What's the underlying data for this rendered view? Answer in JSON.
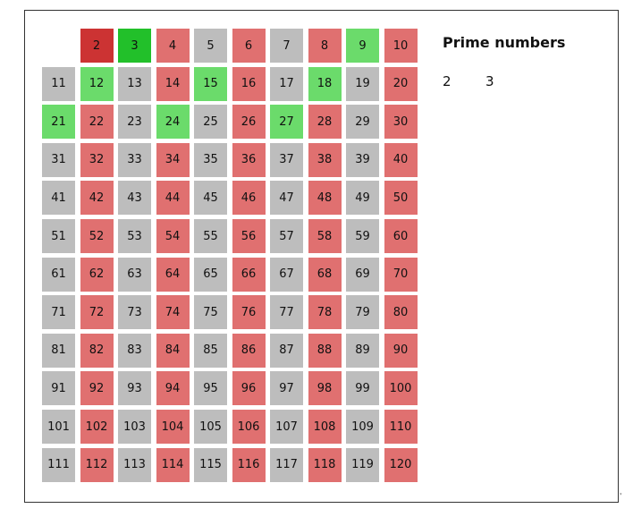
{
  "panel": {
    "title": "Prime numbers",
    "found_primes": [
      "2",
      "3"
    ]
  },
  "sieve": {
    "start": 2,
    "end": 120,
    "columns": 10,
    "first_cell_offset": 1,
    "cells": [
      {
        "n": "2",
        "state": "current-prime"
      },
      {
        "n": "3",
        "state": "prime-found"
      },
      {
        "n": "4",
        "state": "multiple"
      },
      {
        "n": "5",
        "state": "unmarked"
      },
      {
        "n": "6",
        "state": "multiple"
      },
      {
        "n": "7",
        "state": "unmarked"
      },
      {
        "n": "8",
        "state": "multiple"
      },
      {
        "n": "9",
        "state": "marked-green"
      },
      {
        "n": "10",
        "state": "multiple"
      },
      {
        "n": "11",
        "state": "unmarked"
      },
      {
        "n": "12",
        "state": "marked-green"
      },
      {
        "n": "13",
        "state": "unmarked"
      },
      {
        "n": "14",
        "state": "multiple"
      },
      {
        "n": "15",
        "state": "marked-green"
      },
      {
        "n": "16",
        "state": "multiple"
      },
      {
        "n": "17",
        "state": "unmarked"
      },
      {
        "n": "18",
        "state": "marked-green"
      },
      {
        "n": "19",
        "state": "unmarked"
      },
      {
        "n": "20",
        "state": "multiple"
      },
      {
        "n": "21",
        "state": "marked-green"
      },
      {
        "n": "22",
        "state": "multiple"
      },
      {
        "n": "23",
        "state": "unmarked"
      },
      {
        "n": "24",
        "state": "marked-green"
      },
      {
        "n": "25",
        "state": "unmarked"
      },
      {
        "n": "26",
        "state": "multiple"
      },
      {
        "n": "27",
        "state": "marked-green"
      },
      {
        "n": "28",
        "state": "multiple"
      },
      {
        "n": "29",
        "state": "unmarked"
      },
      {
        "n": "30",
        "state": "multiple"
      },
      {
        "n": "31",
        "state": "unmarked"
      },
      {
        "n": "32",
        "state": "multiple"
      },
      {
        "n": "33",
        "state": "unmarked"
      },
      {
        "n": "34",
        "state": "multiple"
      },
      {
        "n": "35",
        "state": "unmarked"
      },
      {
        "n": "36",
        "state": "multiple"
      },
      {
        "n": "37",
        "state": "unmarked"
      },
      {
        "n": "38",
        "state": "multiple"
      },
      {
        "n": "39",
        "state": "unmarked"
      },
      {
        "n": "40",
        "state": "multiple"
      },
      {
        "n": "41",
        "state": "unmarked"
      },
      {
        "n": "42",
        "state": "multiple"
      },
      {
        "n": "43",
        "state": "unmarked"
      },
      {
        "n": "44",
        "state": "multiple"
      },
      {
        "n": "45",
        "state": "unmarked"
      },
      {
        "n": "46",
        "state": "multiple"
      },
      {
        "n": "47",
        "state": "unmarked"
      },
      {
        "n": "48",
        "state": "multiple"
      },
      {
        "n": "49",
        "state": "unmarked"
      },
      {
        "n": "50",
        "state": "multiple"
      },
      {
        "n": "51",
        "state": "unmarked"
      },
      {
        "n": "52",
        "state": "multiple"
      },
      {
        "n": "53",
        "state": "unmarked"
      },
      {
        "n": "54",
        "state": "multiple"
      },
      {
        "n": "55",
        "state": "unmarked"
      },
      {
        "n": "56",
        "state": "multiple"
      },
      {
        "n": "57",
        "state": "unmarked"
      },
      {
        "n": "58",
        "state": "multiple"
      },
      {
        "n": "59",
        "state": "unmarked"
      },
      {
        "n": "60",
        "state": "multiple"
      },
      {
        "n": "61",
        "state": "unmarked"
      },
      {
        "n": "62",
        "state": "multiple"
      },
      {
        "n": "63",
        "state": "unmarked"
      },
      {
        "n": "64",
        "state": "multiple"
      },
      {
        "n": "65",
        "state": "unmarked"
      },
      {
        "n": "66",
        "state": "multiple"
      },
      {
        "n": "67",
        "state": "unmarked"
      },
      {
        "n": "68",
        "state": "multiple"
      },
      {
        "n": "69",
        "state": "unmarked"
      },
      {
        "n": "70",
        "state": "multiple"
      },
      {
        "n": "71",
        "state": "unmarked"
      },
      {
        "n": "72",
        "state": "multiple"
      },
      {
        "n": "73",
        "state": "unmarked"
      },
      {
        "n": "74",
        "state": "multiple"
      },
      {
        "n": "75",
        "state": "unmarked"
      },
      {
        "n": "76",
        "state": "multiple"
      },
      {
        "n": "77",
        "state": "unmarked"
      },
      {
        "n": "78",
        "state": "multiple"
      },
      {
        "n": "79",
        "state": "unmarked"
      },
      {
        "n": "80",
        "state": "multiple"
      },
      {
        "n": "81",
        "state": "unmarked"
      },
      {
        "n": "82",
        "state": "multiple"
      },
      {
        "n": "83",
        "state": "unmarked"
      },
      {
        "n": "84",
        "state": "multiple"
      },
      {
        "n": "85",
        "state": "unmarked"
      },
      {
        "n": "86",
        "state": "multiple"
      },
      {
        "n": "87",
        "state": "unmarked"
      },
      {
        "n": "88",
        "state": "multiple"
      },
      {
        "n": "89",
        "state": "unmarked"
      },
      {
        "n": "90",
        "state": "multiple"
      },
      {
        "n": "91",
        "state": "unmarked"
      },
      {
        "n": "92",
        "state": "multiple"
      },
      {
        "n": "93",
        "state": "unmarked"
      },
      {
        "n": "94",
        "state": "multiple"
      },
      {
        "n": "95",
        "state": "unmarked"
      },
      {
        "n": "96",
        "state": "multiple"
      },
      {
        "n": "97",
        "state": "unmarked"
      },
      {
        "n": "98",
        "state": "multiple"
      },
      {
        "n": "99",
        "state": "unmarked"
      },
      {
        "n": "100",
        "state": "multiple"
      },
      {
        "n": "101",
        "state": "unmarked"
      },
      {
        "n": "102",
        "state": "multiple"
      },
      {
        "n": "103",
        "state": "unmarked"
      },
      {
        "n": "104",
        "state": "multiple"
      },
      {
        "n": "105",
        "state": "unmarked"
      },
      {
        "n": "106",
        "state": "multiple"
      },
      {
        "n": "107",
        "state": "unmarked"
      },
      {
        "n": "108",
        "state": "multiple"
      },
      {
        "n": "109",
        "state": "unmarked"
      },
      {
        "n": "110",
        "state": "multiple"
      },
      {
        "n": "111",
        "state": "unmarked"
      },
      {
        "n": "112",
        "state": "multiple"
      },
      {
        "n": "113",
        "state": "unmarked"
      },
      {
        "n": "114",
        "state": "multiple"
      },
      {
        "n": "115",
        "state": "unmarked"
      },
      {
        "n": "116",
        "state": "multiple"
      },
      {
        "n": "117",
        "state": "unmarked"
      },
      {
        "n": "118",
        "state": "multiple"
      },
      {
        "n": "119",
        "state": "unmarked"
      },
      {
        "n": "120",
        "state": "multiple"
      }
    ]
  },
  "colors": {
    "current-prime": "#cc3333",
    "prime-found": "#22c02a",
    "marked-green": "#6bdb6b",
    "multiple": "#e07070",
    "unmarked": "#bdbdbd"
  },
  "corner_mark": "ᵩ"
}
